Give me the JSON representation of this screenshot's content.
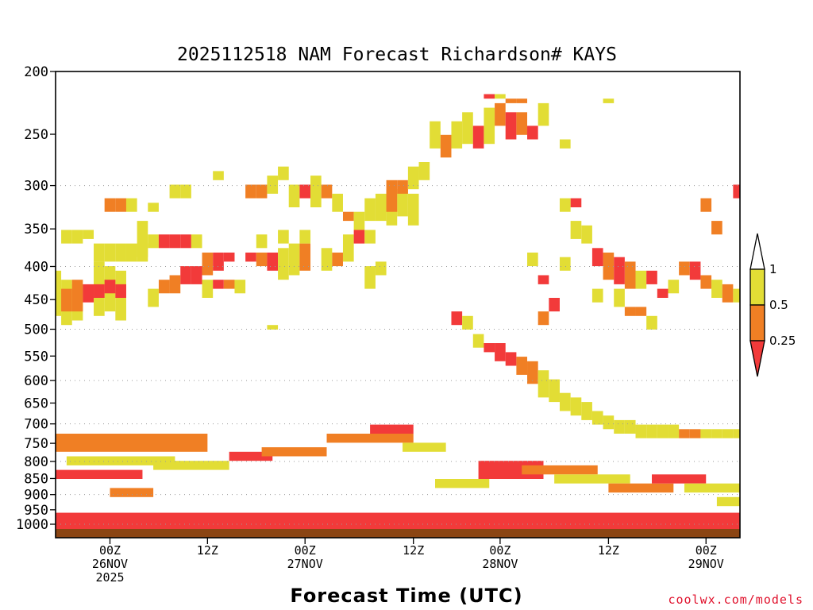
{
  "chart_data": {
    "type": "heatmap",
    "title": "2025112518 NAM Forecast Richardson# KAYS",
    "xlabel": "Forecast Time (UTC)",
    "ylabel": "",
    "y_scale": "log-pressure",
    "ylim": [
      1000,
      200
    ],
    "y_ticks": [
      "200",
      "250",
      "300",
      "350",
      "400",
      "450",
      "500",
      "550",
      "600",
      "650",
      "700",
      "750",
      "800",
      "850",
      "900",
      "950",
      "1000"
    ],
    "y_tick_values": [
      200,
      250,
      300,
      350,
      400,
      450,
      500,
      550,
      600,
      650,
      700,
      750,
      800,
      850,
      900,
      950,
      1000
    ],
    "y_grid_values": [
      300,
      400,
      500,
      600,
      700,
      800,
      900,
      1000
    ],
    "xlim_hours": [
      -6,
      60
    ],
    "x_ticks": [
      {
        "hour": 0,
        "lines": [
          "00Z",
          "26NOV",
          "2025"
        ]
      },
      {
        "hour": 9,
        "lines": [
          "12Z"
        ]
      },
      {
        "hour": 18,
        "lines": [
          "00Z",
          "27NOV"
        ]
      },
      {
        "hour": 28,
        "lines": [
          "12Z"
        ]
      },
      {
        "hour": 36,
        "lines": [
          "00Z",
          "28NOV"
        ]
      },
      {
        "hour": 46,
        "lines": [
          "12Z"
        ]
      },
      {
        "hour": 55,
        "lines": [
          "00Z",
          "29NOV"
        ]
      }
    ],
    "legend": {
      "levels": [
        "1",
        "0.5",
        "0.25"
      ],
      "bins": [
        {
          "label": "0.5-1",
          "color": "#e2dd35"
        },
        {
          "label": "0.25-0.5",
          "color": "#f07f24"
        },
        {
          "label": "<0.25",
          "color": "#f23a3a"
        }
      ]
    },
    "surface_color": "#8b4513",
    "cells": [
      [
        -5,
        44,
        53,
        "#e2dd35"
      ],
      [
        -4,
        46,
        56,
        "#e2dd35"
      ],
      [
        -3,
        47,
        55,
        "#e2dd35"
      ],
      [
        -1,
        42,
        54,
        "#e2dd35"
      ],
      [
        0,
        43,
        53,
        "#e2dd35"
      ],
      [
        1,
        44,
        55,
        "#e2dd35"
      ],
      [
        -5,
        49,
        54,
        "#e2dd35"
      ],
      [
        -4,
        48,
        53,
        "#f07f24"
      ],
      [
        -3,
        46,
        53,
        "#f07f24"
      ],
      [
        -2,
        47,
        51,
        "#f23a3a"
      ],
      [
        -1,
        47,
        50,
        "#f23a3a"
      ],
      [
        0,
        46,
        49,
        "#f23a3a"
      ],
      [
        1,
        47,
        50,
        "#f23a3a"
      ],
      [
        -4,
        35,
        38,
        "#e2dd35"
      ],
      [
        -3,
        35,
        38,
        "#e2dd35"
      ],
      [
        -2,
        35,
        37,
        "#e2dd35"
      ],
      [
        -1,
        38,
        42,
        "#e2dd35"
      ],
      [
        0,
        38,
        42,
        "#e2dd35"
      ],
      [
        1,
        38,
        42,
        "#e2dd35"
      ],
      [
        2,
        38,
        42,
        "#e2dd35"
      ],
      [
        3,
        38,
        42,
        "#e2dd35"
      ],
      [
        0,
        28,
        31,
        "#f07f24"
      ],
      [
        1,
        28,
        31,
        "#f07f24"
      ],
      [
        2,
        28,
        31,
        "#e2dd35"
      ],
      [
        4,
        29,
        31,
        "#e2dd35"
      ],
      [
        3,
        33,
        41,
        "#e2dd35"
      ],
      [
        4,
        36,
        39,
        "#e2dd35"
      ],
      [
        5,
        36,
        39,
        "#f23a3a"
      ],
      [
        6,
        36,
        39,
        "#f23a3a"
      ],
      [
        7,
        36,
        39,
        "#f23a3a"
      ],
      [
        8,
        36,
        39,
        "#e2dd35"
      ],
      [
        5,
        46,
        49,
        "#f07f24"
      ],
      [
        6,
        45,
        49,
        "#f07f24"
      ],
      [
        7,
        43,
        47,
        "#f23a3a"
      ],
      [
        8,
        43,
        47,
        "#f23a3a"
      ],
      [
        9,
        40,
        45,
        "#f07f24"
      ],
      [
        10,
        40,
        44,
        "#f23a3a"
      ],
      [
        11,
        40,
        42,
        "#f23a3a"
      ],
      [
        9,
        46,
        50,
        "#e2dd35"
      ],
      [
        4,
        48,
        52,
        "#e2dd35"
      ],
      [
        10,
        46,
        48,
        "#f23a3a"
      ],
      [
        11,
        46,
        48,
        "#f07f24"
      ],
      [
        12,
        46,
        49,
        "#e2dd35"
      ],
      [
        6,
        25,
        28,
        "#e2dd35"
      ],
      [
        7,
        25,
        28,
        "#e2dd35"
      ],
      [
        10,
        22,
        24,
        "#e2dd35"
      ],
      [
        13,
        25,
        28,
        "#f07f24"
      ],
      [
        14,
        25,
        28,
        "#f07f24"
      ],
      [
        15,
        23,
        27,
        "#e2dd35"
      ],
      [
        16,
        21,
        24,
        "#e2dd35"
      ],
      [
        17,
        25,
        30,
        "#e2dd35"
      ],
      [
        18,
        25,
        28,
        "#f23a3a"
      ],
      [
        19,
        23,
        30,
        "#e2dd35"
      ],
      [
        20,
        25,
        28,
        "#f07f24"
      ],
      [
        21,
        27,
        31,
        "#e2dd35"
      ],
      [
        13,
        40,
        42,
        "#f23a3a"
      ],
      [
        14,
        40,
        43,
        "#f07f24"
      ],
      [
        15,
        40,
        44,
        "#f23a3a"
      ],
      [
        16,
        39,
        46,
        "#e2dd35"
      ],
      [
        17,
        38,
        45,
        "#e2dd35"
      ],
      [
        18,
        38,
        44,
        "#f07f24"
      ],
      [
        14,
        36,
        39,
        "#e2dd35"
      ],
      [
        16,
        35,
        38,
        "#e2dd35"
      ],
      [
        18,
        35,
        38,
        "#e2dd35"
      ],
      [
        15,
        56,
        57,
        "#e2dd35"
      ],
      [
        20,
        39,
        44,
        "#e2dd35"
      ],
      [
        21,
        40,
        43,
        "#f07f24"
      ],
      [
        22,
        36,
        42,
        "#e2dd35"
      ],
      [
        23,
        35,
        38,
        "#f23a3a"
      ],
      [
        24,
        35,
        38,
        "#e2dd35"
      ],
      [
        22,
        31,
        33,
        "#f07f24"
      ],
      [
        23,
        31,
        35,
        "#e2dd35"
      ],
      [
        24,
        28,
        33,
        "#e2dd35"
      ],
      [
        25,
        27,
        33,
        "#e2dd35"
      ],
      [
        26,
        26,
        34,
        "#e2dd35"
      ],
      [
        27,
        26,
        32,
        "#e2dd35"
      ],
      [
        28,
        27,
        34,
        "#e2dd35"
      ],
      [
        24,
        43,
        48,
        "#e2dd35"
      ],
      [
        25,
        42,
        45,
        "#e2dd35"
      ],
      [
        26,
        24,
        31,
        "#f07f24"
      ],
      [
        27,
        24,
        27,
        "#f07f24"
      ],
      [
        28,
        21,
        26,
        "#e2dd35"
      ],
      [
        29,
        20,
        24,
        "#e2dd35"
      ],
      [
        30,
        11,
        17,
        "#e2dd35"
      ],
      [
        31,
        14,
        19,
        "#f07f24"
      ],
      [
        32,
        11,
        17,
        "#e2dd35"
      ],
      [
        33,
        9,
        16,
        "#e2dd35"
      ],
      [
        34,
        12,
        17,
        "#f23a3a"
      ],
      [
        35,
        8,
        16,
        "#e2dd35"
      ],
      [
        36,
        7,
        12,
        "#f07f24"
      ],
      [
        37,
        9,
        15,
        "#f23a3a"
      ],
      [
        38,
        9,
        14,
        "#f07f24"
      ],
      [
        39,
        12,
        15,
        "#f23a3a"
      ],
      [
        40,
        7,
        12,
        "#e2dd35"
      ],
      [
        42,
        15,
        17,
        "#e2dd35"
      ],
      [
        37,
        6,
        7,
        "#f07f24"
      ],
      [
        38,
        6,
        7,
        "#f07f24"
      ],
      [
        35,
        5,
        6,
        "#f23a3a"
      ],
      [
        36,
        5,
        6,
        "#e2dd35"
      ],
      [
        46,
        6,
        7,
        "#e2dd35"
      ],
      [
        32,
        53,
        56,
        "#f23a3a"
      ],
      [
        33,
        54,
        57,
        "#e2dd35"
      ],
      [
        34,
        58,
        61,
        "#e2dd35"
      ],
      [
        35,
        60,
        62,
        "#f23a3a"
      ],
      [
        36,
        60,
        64,
        "#f23a3a"
      ],
      [
        37,
        62,
        65,
        "#f23a3a"
      ],
      [
        38,
        63,
        67,
        "#f07f24"
      ],
      [
        39,
        64,
        69,
        "#f07f24"
      ],
      [
        40,
        66,
        72,
        "#e2dd35"
      ],
      [
        41,
        68,
        73,
        "#e2dd35"
      ],
      [
        42,
        71,
        75,
        "#e2dd35"
      ],
      [
        43,
        72,
        76,
        "#e2dd35"
      ],
      [
        44,
        73,
        77,
        "#e2dd35"
      ],
      [
        45,
        75,
        78,
        "#e2dd35"
      ],
      [
        46,
        76,
        79,
        "#e2dd35"
      ],
      [
        47,
        77,
        80,
        "#e2dd35"
      ],
      [
        48,
        77,
        80,
        "#e2dd35"
      ],
      [
        49,
        78,
        81,
        "#e2dd35"
      ],
      [
        50,
        78,
        81,
        "#e2dd35"
      ],
      [
        51,
        78,
        81,
        "#e2dd35"
      ],
      [
        52,
        78,
        81,
        "#e2dd35"
      ],
      [
        53,
        79,
        81,
        "#f07f24"
      ],
      [
        54,
        79,
        81,
        "#f07f24"
      ],
      [
        55,
        79,
        81,
        "#e2dd35"
      ],
      [
        56,
        79,
        81,
        "#e2dd35"
      ],
      [
        57,
        79,
        81,
        "#e2dd35"
      ],
      [
        58,
        79,
        81,
        "#e2dd35"
      ],
      [
        45,
        39,
        43,
        "#f23a3a"
      ],
      [
        46,
        40,
        46,
        "#f07f24"
      ],
      [
        47,
        41,
        47,
        "#f23a3a"
      ],
      [
        48,
        42,
        48,
        "#f07f24"
      ],
      [
        49,
        44,
        48,
        "#e2dd35"
      ],
      [
        50,
        44,
        47,
        "#f23a3a"
      ],
      [
        45,
        48,
        51,
        "#e2dd35"
      ],
      [
        47,
        48,
        52,
        "#e2dd35"
      ],
      [
        48,
        52,
        54,
        "#f07f24"
      ],
      [
        49,
        52,
        54,
        "#f07f24"
      ],
      [
        50,
        54,
        57,
        "#e2dd35"
      ],
      [
        42,
        41,
        44,
        "#e2dd35"
      ],
      [
        40,
        45,
        47,
        "#f23a3a"
      ],
      [
        39,
        40,
        43,
        "#e2dd35"
      ],
      [
        41,
        50,
        53,
        "#f23a3a"
      ],
      [
        40,
        53,
        56,
        "#f07f24"
      ],
      [
        53,
        42,
        45,
        "#f07f24"
      ],
      [
        54,
        42,
        46,
        "#f23a3a"
      ],
      [
        55,
        45,
        48,
        "#f07f24"
      ],
      [
        56,
        46,
        50,
        "#e2dd35"
      ],
      [
        57,
        47,
        51,
        "#f07f24"
      ],
      [
        58,
        48,
        51,
        "#e2dd35"
      ],
      [
        52,
        46,
        49,
        "#e2dd35"
      ],
      [
        51,
        48,
        50,
        "#f23a3a"
      ],
      [
        56,
        33,
        36,
        "#f07f24"
      ],
      [
        55,
        28,
        31,
        "#f07f24"
      ],
      [
        58,
        25,
        28,
        "#f23a3a"
      ],
      [
        43,
        33,
        37,
        "#e2dd35"
      ],
      [
        44,
        34,
        38,
        "#e2dd35"
      ],
      [
        43,
        28,
        30,
        "#f23a3a"
      ],
      [
        42,
        28,
        31,
        "#e2dd35"
      ]
    ],
    "boundary_layer": {
      "base_color": "#f23a3a",
      "streaks": [
        [
          -6,
          9,
          80,
          84,
          "#f07f24"
        ],
        [
          -4,
          6,
          85,
          87,
          "#e2dd35"
        ],
        [
          -5,
          3,
          88,
          90,
          "#f23a3a"
        ],
        [
          4,
          11,
          86,
          88,
          "#e2dd35"
        ],
        [
          11,
          15,
          84,
          86,
          "#f23a3a"
        ],
        [
          14,
          20,
          83,
          85,
          "#f07f24"
        ],
        [
          20,
          28,
          80,
          82,
          "#f07f24"
        ],
        [
          24,
          28,
          78,
          80,
          "#f23a3a"
        ],
        [
          27,
          31,
          82,
          84,
          "#e2dd35"
        ],
        [
          34,
          40,
          86,
          90,
          "#f23a3a"
        ],
        [
          38,
          45,
          87,
          89,
          "#f07f24"
        ],
        [
          41,
          48,
          89,
          91,
          "#e2dd35"
        ],
        [
          46,
          52,
          91,
          93,
          "#f07f24"
        ],
        [
          50,
          55,
          89,
          91,
          "#f23a3a"
        ],
        [
          53,
          60,
          91,
          93,
          "#e2dd35"
        ],
        [
          56,
          60,
          94,
          96,
          "#e2dd35"
        ],
        [
          30,
          35,
          90,
          92,
          "#e2dd35"
        ],
        [
          0,
          4,
          92,
          94,
          "#f07f24"
        ]
      ]
    }
  },
  "credit": "coolwx.com/models"
}
